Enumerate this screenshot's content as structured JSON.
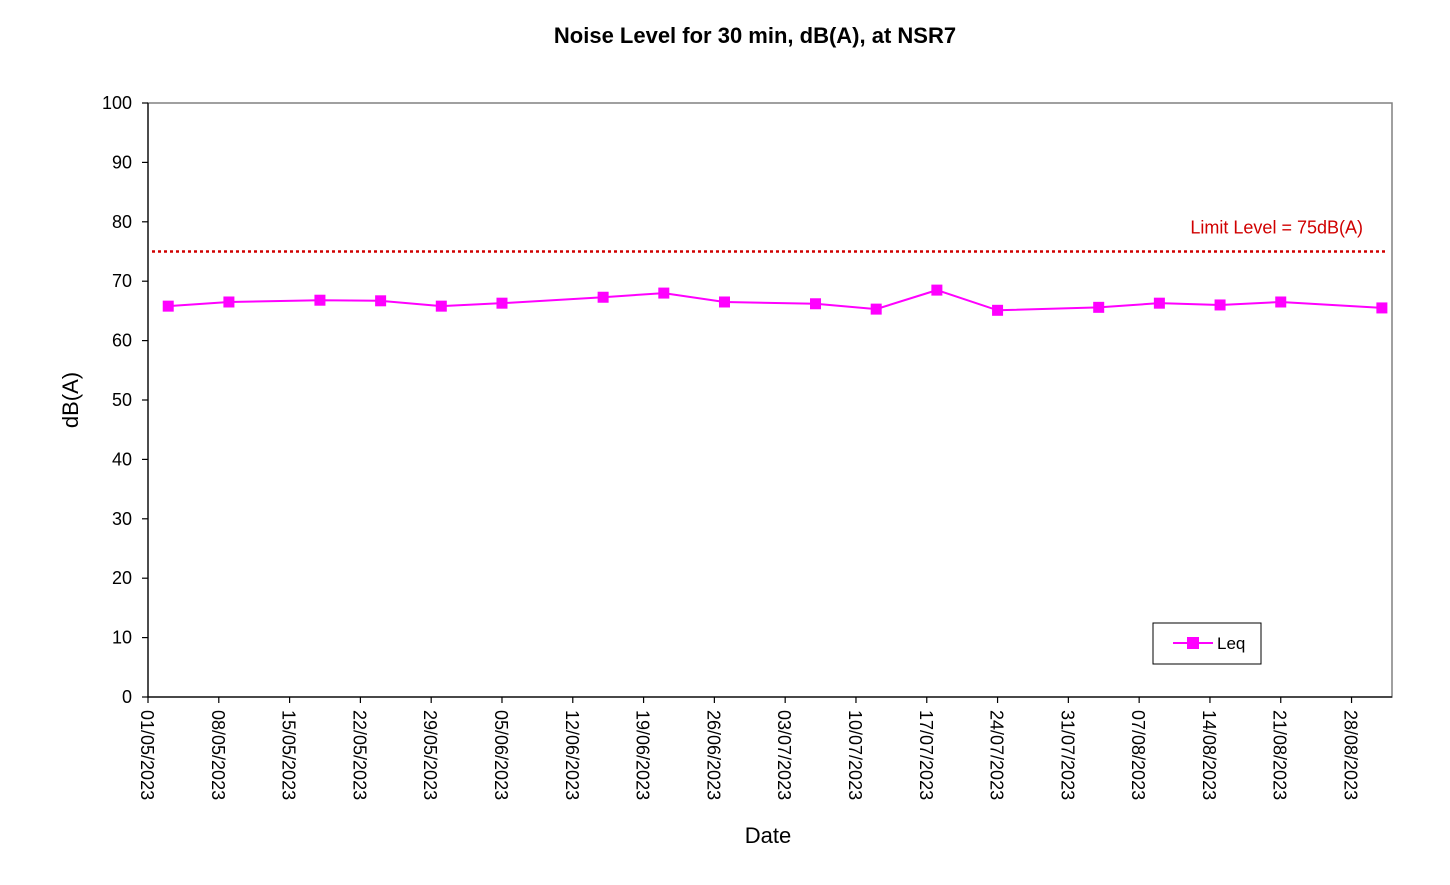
{
  "chart_data": {
    "type": "line",
    "title": "Noise Level for 30 min, dB(A), at NSR7",
    "xlabel": "Date",
    "ylabel": "dB(A)",
    "xlim": [
      "01/05/2023",
      "01/09/2023"
    ],
    "ylim": [
      0,
      100
    ],
    "y_ticks": [
      0,
      10,
      20,
      30,
      40,
      50,
      60,
      70,
      80,
      90,
      100
    ],
    "x_ticks": [
      "01/05/2023",
      "08/05/2023",
      "15/05/2023",
      "22/05/2023",
      "29/05/2023",
      "05/06/2023",
      "12/06/2023",
      "19/06/2023",
      "26/06/2023",
      "03/07/2023",
      "10/07/2023",
      "17/07/2023",
      "24/07/2023",
      "31/07/2023",
      "07/08/2023",
      "14/08/2023",
      "21/08/2023",
      "28/08/2023"
    ],
    "grid": false,
    "legend_position": "bottom-right",
    "series": [
      {
        "name": "Leq",
        "color": "#ff00ff",
        "marker": "square",
        "x": [
          "03/05/2023",
          "09/05/2023",
          "18/05/2023",
          "24/05/2023",
          "30/05/2023",
          "05/06/2023",
          "15/06/2023",
          "21/06/2023",
          "27/06/2023",
          "06/07/2023",
          "12/07/2023",
          "18/07/2023",
          "24/07/2023",
          "03/08/2023",
          "09/08/2023",
          "15/08/2023",
          "21/08/2023",
          "31/08/2023"
        ],
        "values": [
          65.8,
          66.5,
          66.8,
          66.7,
          65.8,
          66.3,
          67.3,
          68.0,
          66.5,
          66.2,
          65.3,
          68.5,
          65.1,
          65.6,
          66.3,
          66.0,
          66.5,
          65.5
        ]
      }
    ],
    "limit_line": {
      "value": 75,
      "label": "Limit Level = 75dB(A)",
      "color": "#d00000"
    }
  }
}
